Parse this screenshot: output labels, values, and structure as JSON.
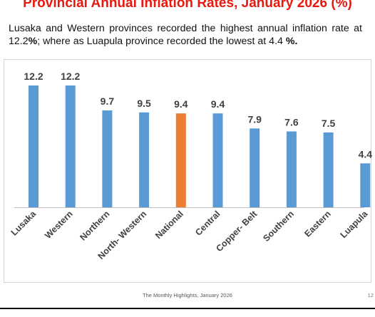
{
  "slide": {
    "title": "Provincial Annual Inflation Rates, January 2026 (%)",
    "subtitle_part1": "Lusaka and Western provinces recorded the highest annual inflation rate at 12.2",
    "subtitle_bold1": "%",
    "subtitle_part2": "; where as Luapula province recorded the lowest at 4.4 ",
    "subtitle_bold2": "%.",
    "footer": "The Monthly Highlights, January 2026",
    "page_number": "12"
  },
  "chart_data": {
    "type": "bar",
    "categories": [
      "Lusaka",
      "Western",
      "Northern",
      "North- Western",
      "National",
      "Central",
      "Copper- Belt",
      "Southern",
      "Eastern",
      "Luapula"
    ],
    "values": [
      12.2,
      12.2,
      9.7,
      9.5,
      9.4,
      9.4,
      7.9,
      7.6,
      7.5,
      4.4
    ],
    "data_labels": [
      "12.2",
      "12.2",
      "9.7",
      "9.5",
      "9.4",
      "9.4",
      "7.9",
      "7.6",
      "7.5",
      "4.4"
    ],
    "bar_colors": [
      "#5b9bd5",
      "#5b9bd5",
      "#5b9bd5",
      "#5b9bd5",
      "#ed7d31",
      "#5b9bd5",
      "#5b9bd5",
      "#5b9bd5",
      "#5b9bd5",
      "#5b9bd5"
    ],
    "highlight_category": "National",
    "title": "",
    "xlabel": "",
    "ylabel": "",
    "ylim": [
      0,
      12.2
    ],
    "grid": false,
    "legend": "none",
    "label_color": "#404040",
    "axis_color": "#bfbfbf"
  }
}
